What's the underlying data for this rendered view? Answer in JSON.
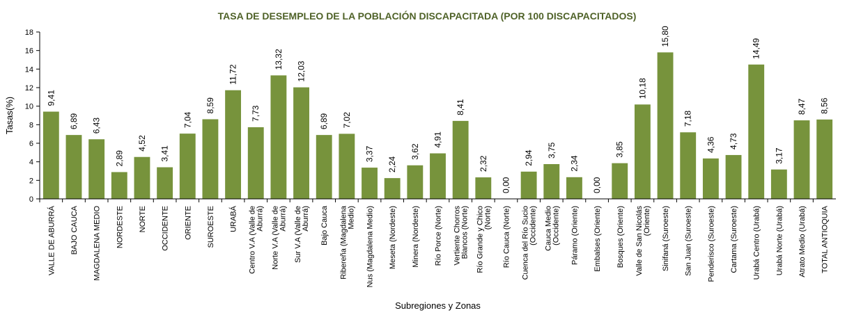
{
  "chart_data": {
    "type": "bar",
    "title": "TASA DE DESEMPLEO DE LA POBLACIÓN DISCAPACITADA (POR 100 DISCAPACITADOS)",
    "xlabel": "Subregiones y Zonas",
    "ylabel": "Tasas(%)",
    "ylim": [
      0,
      18
    ],
    "yticks": [
      "0",
      "2",
      "4",
      "6",
      "8",
      "10",
      "12",
      "14",
      "16",
      "18"
    ],
    "grid": false,
    "legend": "none",
    "bar_color": "#77933C",
    "title_color": "#4F6228",
    "categories": [
      "VALLE DE ABURRÁ",
      "BAJO CAUCA",
      "MAGDALENA MEDIO",
      "NORDESTE",
      "NORTE",
      "OCCIDENTE",
      "ORIENTE",
      "SUROESTE",
      "URABÁ",
      "Centro V.A (Valle de Aburrá)",
      "Norte V.A (Valle de Aburrá)",
      "Sur V.A (Valle de Aburrá)",
      "Bajo Cauca",
      "Ribereña (Magdalena Medio)",
      "Nus (Magdalena Medio)",
      "Meseta (Nordeste)",
      "Minera (Nordeste)",
      "Río Porce (Norte)",
      "Vertiente Chorros Blancos (Norte)",
      "Río Grande y Chico (Norte)",
      "Río Cauca (Norte)",
      "Cuenca del Río Sucio (Occidente)",
      "Cauca Medio (Occidente)",
      "Páramo (Oriente)",
      "Embalses (Oriente)",
      "Bosques (Oriente)",
      "Valle de San Nicolás (Oriente)",
      "Sinifaná (Suroeste)",
      "San Juan (Suroeste)",
      "Penderisco (Suroeste)",
      "Cartama (Suroeste)",
      "Urabá Centro (Urabá)",
      "Urabá Norte (Urabá)",
      "Atrato Medio (Urabá)",
      "TOTAL ANTIOQUIA"
    ],
    "category_lines": [
      [
        "VALLE DE ABURRÁ"
      ],
      [
        "BAJO CAUCA"
      ],
      [
        "MAGDALENA MEDIO"
      ],
      [
        "NORDESTE"
      ],
      [
        "NORTE"
      ],
      [
        "OCCIDENTE"
      ],
      [
        "ORIENTE"
      ],
      [
        "SUROESTE"
      ],
      [
        "URABÁ"
      ],
      [
        "Centro V.A (Valle de",
        "Aburrá)"
      ],
      [
        "Norte V.A (Valle de",
        "Aburrá)"
      ],
      [
        "Sur V.A (Valle de",
        "Aburrá)"
      ],
      [
        "Bajo Cauca"
      ],
      [
        "Ribereña (Magdalena",
        "Medio)"
      ],
      [
        "Nus (Magdalena Medio)"
      ],
      [
        "Meseta (Nordeste)"
      ],
      [
        "Minera (Nordeste)"
      ],
      [
        "Río Porce (Norte)"
      ],
      [
        "Vertiente Chorros",
        "Blancos (Norte)"
      ],
      [
        "Río Grande y Chico",
        "(Norte)"
      ],
      [
        "Río Cauca (Norte)"
      ],
      [
        "Cuenca del Río Sucio",
        "(Occidente)"
      ],
      [
        "Cauca Medio",
        "(Occidente)"
      ],
      [
        "Páramo (Oriente)"
      ],
      [
        "Embalses (Oriente)"
      ],
      [
        "Bosques (Oriente)"
      ],
      [
        "Valle de San Nicolás",
        "(Oriente)"
      ],
      [
        "Sinifaná (Suroeste)"
      ],
      [
        "San Juan (Suroeste)"
      ],
      [
        "Penderisco (Suroeste)"
      ],
      [
        "Cartama (Suroeste)"
      ],
      [
        "Urabá Centro (Urabá)"
      ],
      [
        "Urabá Norte (Urabá)"
      ],
      [
        "Atrato Medio (Urabá)"
      ],
      [
        "TOTAL ANTIOQUIA"
      ]
    ],
    "values": [
      9.41,
      6.89,
      6.43,
      2.89,
      4.52,
      3.41,
      7.04,
      8.59,
      11.72,
      7.73,
      13.32,
      12.03,
      6.89,
      7.02,
      3.37,
      2.24,
      3.62,
      4.91,
      8.41,
      2.32,
      0.0,
      2.94,
      3.75,
      2.34,
      0.0,
      3.85,
      10.18,
      15.8,
      7.18,
      4.36,
      4.73,
      14.49,
      3.17,
      8.47,
      8.56
    ],
    "value_labels": [
      "9,41",
      "6,89",
      "6,43",
      "2,89",
      "4,52",
      "3,41",
      "7,04",
      "8,59",
      "11,72",
      "7,73",
      "13,32",
      "12,03",
      "6,89",
      "7,02",
      "3,37",
      "2,24",
      "3,62",
      "4,91",
      "8,41",
      "2,32",
      "0,00",
      "2,94",
      "3,75",
      "2,34",
      "0,00",
      "3,85",
      "10,18",
      "15,80",
      "7,18",
      "4,36",
      "4,73",
      "14,49",
      "3,17",
      "8,47",
      "8,56"
    ]
  }
}
